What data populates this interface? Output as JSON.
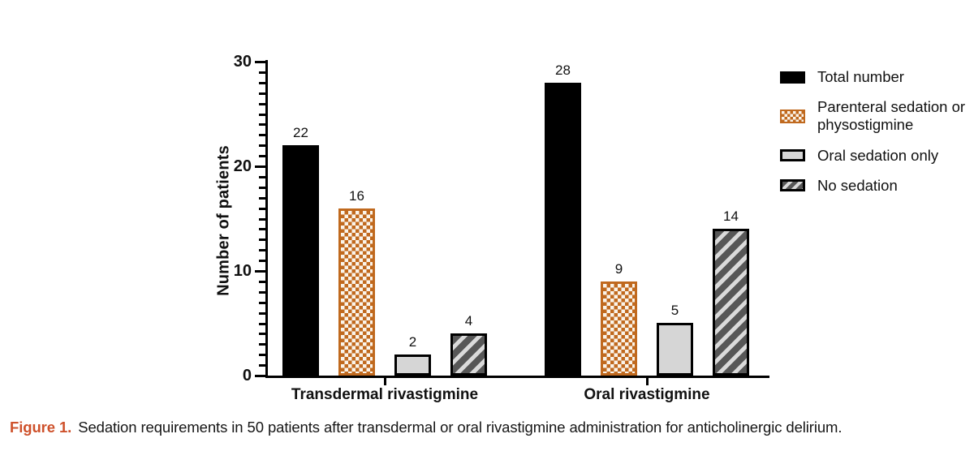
{
  "chart_data": {
    "type": "bar",
    "title": "",
    "xlabel": "",
    "ylabel": "Number of patients",
    "ylim": [
      0,
      30
    ],
    "y_major_ticks": [
      0,
      10,
      20,
      30
    ],
    "y_minor_tick_step": 1,
    "grid": false,
    "legend_position": "right",
    "bar_value_labels": true,
    "categories": [
      "Transdermal rivastigmine",
      "Oral rivastigmine"
    ],
    "series": [
      {
        "name": "Total number",
        "pattern": "solid-black",
        "color": "#000000",
        "values": [
          22,
          28
        ]
      },
      {
        "name": "Parenteral sedation or physostigmine",
        "pattern": "orange-checkerboard",
        "color": "#C0691E",
        "values": [
          16,
          9
        ]
      },
      {
        "name": "Oral sedation only",
        "pattern": "light-gray",
        "color": "#D6D6D6",
        "values": [
          2,
          5
        ]
      },
      {
        "name": "No sedation",
        "pattern": "diagonal-hatch",
        "color": "#575757",
        "values": [
          4,
          14
        ]
      }
    ]
  },
  "legend": {
    "items": [
      {
        "label": "Total number",
        "swatch": "solid-black"
      },
      {
        "label": "Parenteral sedation or physostigmine",
        "swatch": "orange-checkerboard"
      },
      {
        "label": "Oral sedation only",
        "swatch": "light-gray"
      },
      {
        "label": "No sedation",
        "swatch": "diagonal-hatch"
      }
    ]
  },
  "caption": {
    "label": "Figure 1.",
    "text": "Sedation requirements in 50 patients after transdermal or oral rivastigmine administration for anticholinergic delirium."
  },
  "colors": {
    "pattern_orange": "#C0691E",
    "light_gray_fill": "#D6D6D6",
    "hatch_dark_gray": "#575757",
    "hatch_light_gray": "#DADADA",
    "figure_label_orange": "#CE512B",
    "bar_black": "#000000"
  }
}
